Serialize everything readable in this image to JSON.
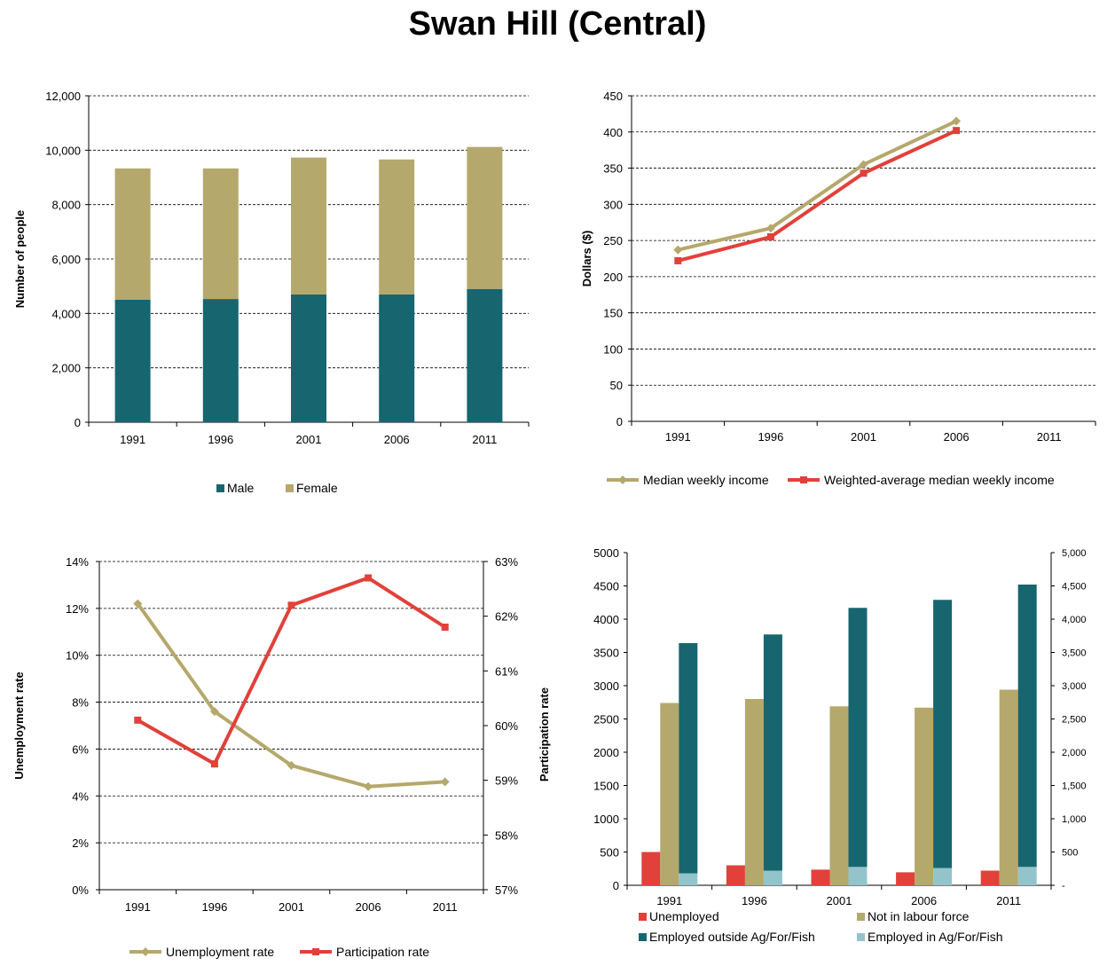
{
  "title": "Swan Hill (Central)",
  "colors": {
    "teal": "#17656f",
    "khaki": "#b5a86c",
    "red": "#e2403a",
    "lightblue": "#93c4cb"
  },
  "chart_data": [
    {
      "id": "population",
      "type": "bar",
      "stacked": true,
      "categories": [
        "1991",
        "1996",
        "2001",
        "2006",
        "2011"
      ],
      "series": [
        {
          "name": "Male",
          "values": [
            4500,
            4530,
            4700,
            4700,
            4900
          ],
          "color": "#17656f"
        },
        {
          "name": "Female",
          "values": [
            4830,
            4800,
            5030,
            4960,
            5220
          ],
          "color": "#b5a86c"
        }
      ],
      "ylabel": "Number of people",
      "ylim": [
        0,
        12000
      ],
      "yticks": [
        0,
        2000,
        4000,
        6000,
        8000,
        10000,
        12000
      ],
      "ytick_labels": [
        "0",
        "2,000",
        "4,000",
        "6,000",
        "8,000",
        "10,000",
        "12,000"
      ],
      "grid": true,
      "legend": "bottom"
    },
    {
      "id": "income",
      "type": "line",
      "categories": [
        "1991",
        "1996",
        "2001",
        "2006",
        "2011"
      ],
      "series": [
        {
          "name": "Median weekly income",
          "values": [
            237,
            267,
            355,
            415,
            null
          ],
          "color": "#b5a86c",
          "marker": "diamond"
        },
        {
          "name": "Weighted-average median weekly income",
          "values": [
            222,
            255,
            343,
            402,
            null
          ],
          "color": "#e2403a",
          "marker": "square"
        }
      ],
      "ylabel": "Dollars ($)",
      "ylim": [
        0,
        450
      ],
      "yticks": [
        0,
        50,
        100,
        150,
        200,
        250,
        300,
        350,
        400,
        450
      ],
      "ytick_labels": [
        "0",
        "50",
        "100",
        "150",
        "200",
        "250",
        "300",
        "350",
        "400",
        "450"
      ],
      "grid": true,
      "legend": "bottom"
    },
    {
      "id": "rates",
      "type": "line",
      "categories": [
        "1991",
        "1996",
        "2001",
        "2006",
        "2011"
      ],
      "series": [
        {
          "name": "Unemployment rate",
          "values": [
            12.2,
            7.6,
            5.3,
            4.4,
            4.6
          ],
          "axis": "left",
          "color": "#b5a86c",
          "marker": "diamond"
        },
        {
          "name": "Participation rate",
          "values": [
            60.1,
            59.3,
            62.2,
            62.7,
            61.8
          ],
          "axis": "right",
          "color": "#e2403a",
          "marker": "square"
        }
      ],
      "ylabel": "Unemployment rate",
      "ylim": [
        0,
        14
      ],
      "yticks": [
        0,
        2,
        4,
        6,
        8,
        10,
        12,
        14
      ],
      "ytick_labels": [
        "0%",
        "2%",
        "4%",
        "6%",
        "8%",
        "10%",
        "12%",
        "14%"
      ],
      "y2label": "Participation rate",
      "y2lim": [
        57,
        63
      ],
      "y2ticks": [
        57,
        58,
        59,
        60,
        61,
        62,
        63
      ],
      "y2tick_labels": [
        "57%",
        "58%",
        "59%",
        "60%",
        "61%",
        "62%",
        "63%"
      ],
      "grid": true,
      "legend": "bottom"
    },
    {
      "id": "labour",
      "type": "bar",
      "grouped_with_stack": true,
      "categories": [
        "1991",
        "1996",
        "2001",
        "2006",
        "2011"
      ],
      "series": [
        {
          "name": "Unemployed",
          "values": [
            500,
            300,
            235,
            195,
            220
          ],
          "color": "#e2403a"
        },
        {
          "name": "Not in labour force",
          "values": [
            2740,
            2800,
            2690,
            2670,
            2940
          ],
          "color": "#b5a86c"
        },
        {
          "name": "Employed outside Ag/For/Fish",
          "values": [
            3640,
            3770,
            4170,
            4290,
            4520
          ],
          "color": "#17656f",
          "stack_with": "Employed in Ag/For/Fish"
        },
        {
          "name": "Employed in Ag/For/Fish",
          "values": [
            180,
            220,
            275,
            260,
            275
          ],
          "color": "#93c4cb"
        }
      ],
      "ylim": [
        0,
        5000
      ],
      "yticks": [
        0,
        500,
        1000,
        1500,
        2000,
        2500,
        3000,
        3500,
        4000,
        4500,
        5000
      ],
      "ytick_labels": [
        "0",
        "500",
        "1000",
        "1500",
        "2000",
        "2500",
        "3000",
        "3500",
        "4000",
        "4500",
        "5000"
      ],
      "y2ticks": [
        0,
        500,
        1000,
        1500,
        2000,
        2500,
        3000,
        3500,
        4000,
        4500,
        5000
      ],
      "y2tick_labels": [
        "-",
        "500",
        "1,000",
        "1,500",
        "2,000",
        "2,500",
        "3,000",
        "3,500",
        "4,000",
        "4,500",
        "5,000"
      ],
      "grid": false,
      "legend": "bottom"
    }
  ]
}
